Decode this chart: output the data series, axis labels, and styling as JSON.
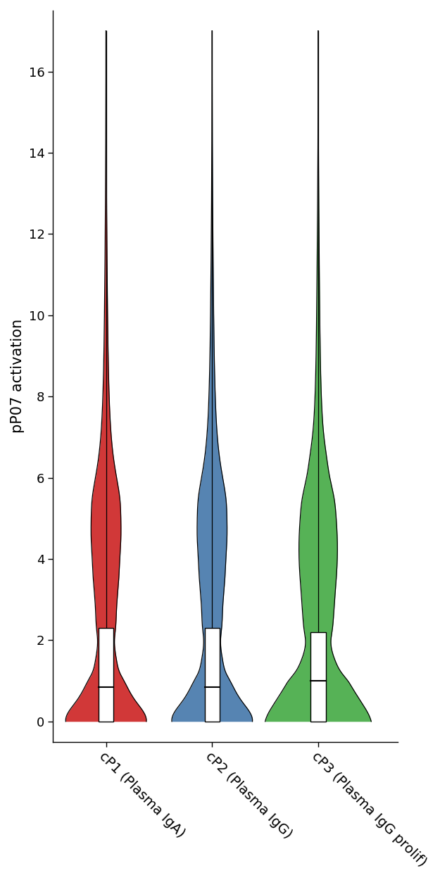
{
  "categories": [
    "cP1 (Plasma IgA)",
    "cP2 (Plasma IgG)",
    "cP3 (Plasma IgG prolif)"
  ],
  "colors": [
    "#CC2222",
    "#4477AA",
    "#44AA44"
  ],
  "ylabel": "pP07 activation",
  "ylim": [
    -0.5,
    17.5
  ],
  "yticks": [
    0,
    2,
    4,
    6,
    8,
    10,
    12,
    14,
    16
  ],
  "violin_stats": [
    {
      "median": 0.85,
      "q1": 0.0,
      "q3": 2.3,
      "whisker_low": 0.0,
      "whisker_high": 17.0
    },
    {
      "median": 0.85,
      "q1": 0.0,
      "q3": 2.3,
      "whisker_low": 0.0,
      "whisker_high": 17.0
    },
    {
      "median": 1.0,
      "q1": 0.0,
      "q3": 2.2,
      "whisker_low": 0.0,
      "whisker_high": 17.0
    }
  ],
  "violin_widths": [
    [
      [
        0.0,
        0.38
      ],
      [
        0.25,
        0.35
      ],
      [
        0.5,
        0.28
      ],
      [
        0.75,
        0.22
      ],
      [
        1.0,
        0.17
      ],
      [
        1.2,
        0.13
      ],
      [
        1.5,
        0.1
      ],
      [
        2.0,
        0.08
      ],
      [
        2.3,
        0.09
      ],
      [
        2.8,
        0.1
      ],
      [
        3.5,
        0.12
      ],
      [
        4.0,
        0.13
      ],
      [
        4.5,
        0.14
      ],
      [
        5.0,
        0.14
      ],
      [
        5.5,
        0.13
      ],
      [
        6.0,
        0.1
      ],
      [
        6.5,
        0.07
      ],
      [
        7.0,
        0.05
      ],
      [
        8.0,
        0.03
      ],
      [
        10.0,
        0.015
      ],
      [
        13.0,
        0.005
      ],
      [
        17.0,
        0.001
      ]
    ],
    [
      [
        0.0,
        0.38
      ],
      [
        0.25,
        0.35
      ],
      [
        0.5,
        0.28
      ],
      [
        0.75,
        0.22
      ],
      [
        1.0,
        0.17
      ],
      [
        1.2,
        0.13
      ],
      [
        1.5,
        0.1
      ],
      [
        2.0,
        0.08
      ],
      [
        2.3,
        0.09
      ],
      [
        2.8,
        0.1
      ],
      [
        3.5,
        0.12
      ],
      [
        4.0,
        0.13
      ],
      [
        4.5,
        0.14
      ],
      [
        5.0,
        0.14
      ],
      [
        5.5,
        0.13
      ],
      [
        6.0,
        0.1
      ],
      [
        6.5,
        0.07
      ],
      [
        7.0,
        0.05
      ],
      [
        8.0,
        0.03
      ],
      [
        10.0,
        0.015
      ],
      [
        13.0,
        0.005
      ],
      [
        17.0,
        0.001
      ]
    ],
    [
      [
        0.0,
        0.5
      ],
      [
        0.25,
        0.46
      ],
      [
        0.5,
        0.4
      ],
      [
        0.75,
        0.34
      ],
      [
        1.0,
        0.28
      ],
      [
        1.2,
        0.22
      ],
      [
        1.5,
        0.16
      ],
      [
        2.0,
        0.12
      ],
      [
        2.2,
        0.13
      ],
      [
        2.8,
        0.15
      ],
      [
        3.5,
        0.17
      ],
      [
        4.0,
        0.18
      ],
      [
        4.5,
        0.18
      ],
      [
        5.0,
        0.17
      ],
      [
        5.5,
        0.15
      ],
      [
        6.0,
        0.11
      ],
      [
        6.5,
        0.08
      ],
      [
        7.0,
        0.055
      ],
      [
        8.0,
        0.03
      ],
      [
        10.0,
        0.015
      ],
      [
        13.0,
        0.005
      ],
      [
        17.0,
        0.001
      ]
    ]
  ],
  "background_color": "#ffffff",
  "figsize": [
    6.25,
    12.5
  ],
  "dpi": 100
}
